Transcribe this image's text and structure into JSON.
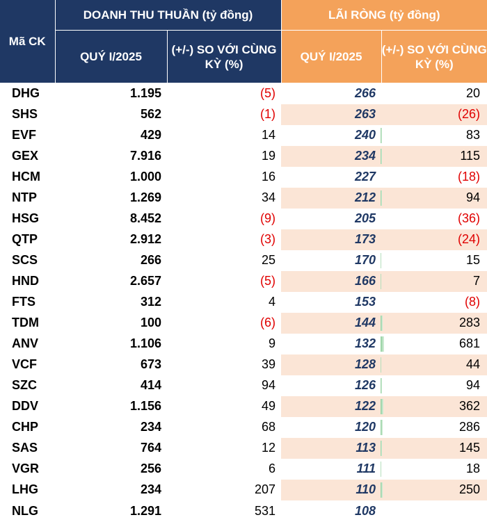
{
  "header": {
    "ma_ck": "Mã CK",
    "doanh_thu": "DOANH THU THUẦN (tỷ đồng)",
    "lai_rong": "LÃI RÒNG (tỷ đồng)",
    "dt_quy": "QUÝ I/2025",
    "dt_change": "(+/-) SO VỚI CÙNG KỲ (%)",
    "lr_quy": "QUÝ I/2025",
    "lr_change": "(+/-) SO VỚI CÙNG KỲ (%)"
  },
  "colors": {
    "navy": "#1f3864",
    "orange": "#f4a25a",
    "shade": "#fbe5d6",
    "negative": "#e00000",
    "bar": "#8fcf9c"
  },
  "rows": [
    {
      "ma": "DHG",
      "dt": "1.195",
      "dt_chg": "(5)",
      "lr": "266",
      "lr_chg": "20",
      "bar_pct": 0
    },
    {
      "ma": "SHS",
      "dt": "562",
      "dt_chg": "(1)",
      "lr": "263",
      "lr_chg": "(26)",
      "bar_pct": 0
    },
    {
      "ma": "EVF",
      "dt": "429",
      "dt_chg": "14",
      "lr": "240",
      "lr_chg": "83",
      "bar_pct": 83
    },
    {
      "ma": "GEX",
      "dt": "7.916",
      "dt_chg": "19",
      "lr": "234",
      "lr_chg": "115",
      "bar_pct": 115
    },
    {
      "ma": "HCM",
      "dt": "1.000",
      "dt_chg": "16",
      "lr": "227",
      "lr_chg": "(18)",
      "bar_pct": 0
    },
    {
      "ma": "NTP",
      "dt": "1.269",
      "dt_chg": "34",
      "lr": "212",
      "lr_chg": "94",
      "bar_pct": 94
    },
    {
      "ma": "HSG",
      "dt": "8.452",
      "dt_chg": "(9)",
      "lr": "205",
      "lr_chg": "(36)",
      "bar_pct": 0
    },
    {
      "ma": "QTP",
      "dt": "2.912",
      "dt_chg": "(3)",
      "lr": "173",
      "lr_chg": "(24)",
      "bar_pct": 0
    },
    {
      "ma": "SCS",
      "dt": "266",
      "dt_chg": "25",
      "lr": "170",
      "lr_chg": "15",
      "bar_pct": 15
    },
    {
      "ma": "HND",
      "dt": "2.657",
      "dt_chg": "(5)",
      "lr": "166",
      "lr_chg": "7",
      "bar_pct": 7
    },
    {
      "ma": "FTS",
      "dt": "312",
      "dt_chg": "4",
      "lr": "153",
      "lr_chg": "(8)",
      "bar_pct": 0
    },
    {
      "ma": "TDM",
      "dt": "100",
      "dt_chg": "(6)",
      "lr": "144",
      "lr_chg": "283",
      "bar_pct": 283
    },
    {
      "ma": "ANV",
      "dt": "1.106",
      "dt_chg": "9",
      "lr": "132",
      "lr_chg": "681",
      "bar_pct": 681
    },
    {
      "ma": "VCF",
      "dt": "673",
      "dt_chg": "39",
      "lr": "128",
      "lr_chg": "44",
      "bar_pct": 44
    },
    {
      "ma": "SZC",
      "dt": "414",
      "dt_chg": "94",
      "lr": "126",
      "lr_chg": "94",
      "bar_pct": 94
    },
    {
      "ma": "DDV",
      "dt": "1.156",
      "dt_chg": "49",
      "lr": "122",
      "lr_chg": "362",
      "bar_pct": 362
    },
    {
      "ma": "CHP",
      "dt": "234",
      "dt_chg": "68",
      "lr": "120",
      "lr_chg": "286",
      "bar_pct": 286
    },
    {
      "ma": "SAS",
      "dt": "764",
      "dt_chg": "12",
      "lr": "113",
      "lr_chg": "145",
      "bar_pct": 145
    },
    {
      "ma": "VGR",
      "dt": "256",
      "dt_chg": "6",
      "lr": "111",
      "lr_chg": "18",
      "bar_pct": 18
    },
    {
      "ma": "LHG",
      "dt": "234",
      "dt_chg": "207",
      "lr": "110",
      "lr_chg": "250",
      "bar_pct": 250
    },
    {
      "ma": "NLG",
      "dt": "1.291",
      "dt_chg": "531",
      "lr": "108",
      "lr_chg": "",
      "bar_pct": 0
    }
  ]
}
